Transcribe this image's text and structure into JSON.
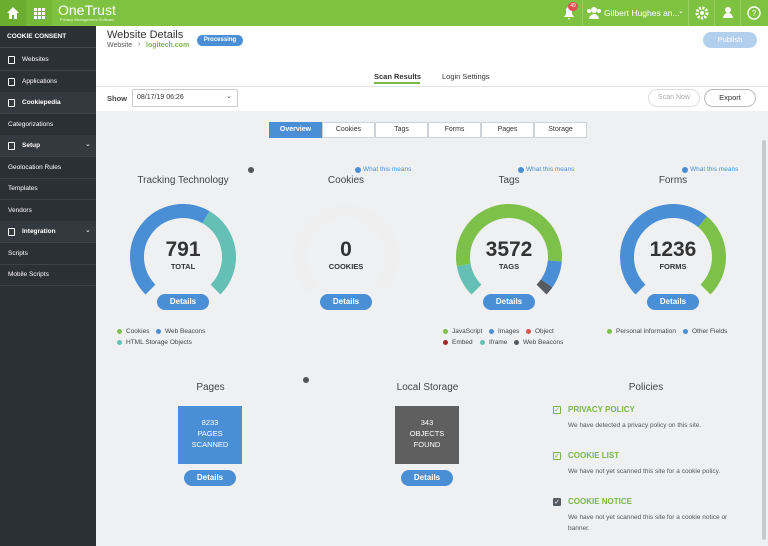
{
  "topbar": {
    "logo": "OneTrust",
    "logo_subtitle": "Privacy Management Software",
    "notification_count": 49,
    "user": "Gilbert Hughes an..."
  },
  "sidebar": {
    "title": "COOKIE CONSENT",
    "items": [
      "Websites",
      "Applications",
      "Cookiepedia",
      "Categorizations",
      "Setup",
      "Geolocation Rules",
      "Templates",
      "Vendors",
      "Integration",
      "Scripts",
      "Mobile Scripts"
    ]
  },
  "header": {
    "title": "Website Details",
    "breadcrumb": [
      "Website",
      "logitech.com"
    ],
    "status": "Processing",
    "publish": "Publish"
  },
  "tabs": [
    "Scan Results",
    "Login Settings"
  ],
  "toolbar": {
    "show_label": "Show",
    "date": "08/17/19 06:26",
    "scan_now": "Scan Now",
    "export": "Export"
  },
  "subtabs": [
    "Overview",
    "Cookies",
    "Tags",
    "Forms",
    "Pages",
    "Storage"
  ],
  "cards": [
    {
      "title": "Tracking Technology",
      "value": 791,
      "unit": "TOTAL",
      "button": "Details",
      "legend": [
        {
          "label": "Cookies",
          "color": "#7dc14a"
        },
        {
          "label": "Web Beacons",
          "color": "#4a8fd6"
        },
        {
          "label": "HTML Storage Objects",
          "color": "#64c0b4"
        }
      ]
    },
    {
      "title": "Cookies",
      "link": "What this means",
      "value": 0,
      "unit": "COOKIES",
      "button": "Details",
      "legend": []
    },
    {
      "title": "Tags",
      "link": "What this means",
      "value": 3572,
      "unit": "TAGS",
      "button": "Details",
      "legend": [
        {
          "label": "JavaScript",
          "color": "#7dc14a"
        },
        {
          "label": "Images",
          "color": "#4a8fd6"
        },
        {
          "label": "Object",
          "color": "#d9534f"
        },
        {
          "label": "Embed",
          "color": "#a3262a"
        },
        {
          "label": "Iframe",
          "color": "#64c0b4"
        },
        {
          "label": "Web Beacons",
          "color": "#555b61"
        }
      ]
    },
    {
      "title": "Forms",
      "link": "What this means",
      "value": 1236,
      "unit": "FORMS",
      "button": "Details",
      "legend": [
        {
          "label": "Personal Information",
          "color": "#7dc14a"
        },
        {
          "label": "Other Fields",
          "color": "#4a8fd6"
        }
      ]
    }
  ],
  "panels": [
    {
      "title": "Pages",
      "value": 8233,
      "lines": [
        "PAGES",
        "SCANNED"
      ],
      "color": "#4a8fd6",
      "button": "Details"
    },
    {
      "title": "Local Storage",
      "value": 343,
      "lines": [
        "OBJECTS",
        "FOUND"
      ],
      "color": "#5f5f5f",
      "button": "Details"
    }
  ],
  "policies": {
    "title": "Policies",
    "items": [
      {
        "title": "PRIVACY POLICY",
        "text": "We have detected a privacy policy on this site.",
        "icon_color": "#7ab648"
      },
      {
        "title": "COOKIE LIST",
        "text": "We have not yet scanned this site for a cookie policy.",
        "icon_color": "#7ab648"
      },
      {
        "title": "COOKIE NOTICE",
        "text": "We have not yet scanned this site for a cookie notice or banner.",
        "icon_color": "#555b61"
      }
    ]
  }
}
